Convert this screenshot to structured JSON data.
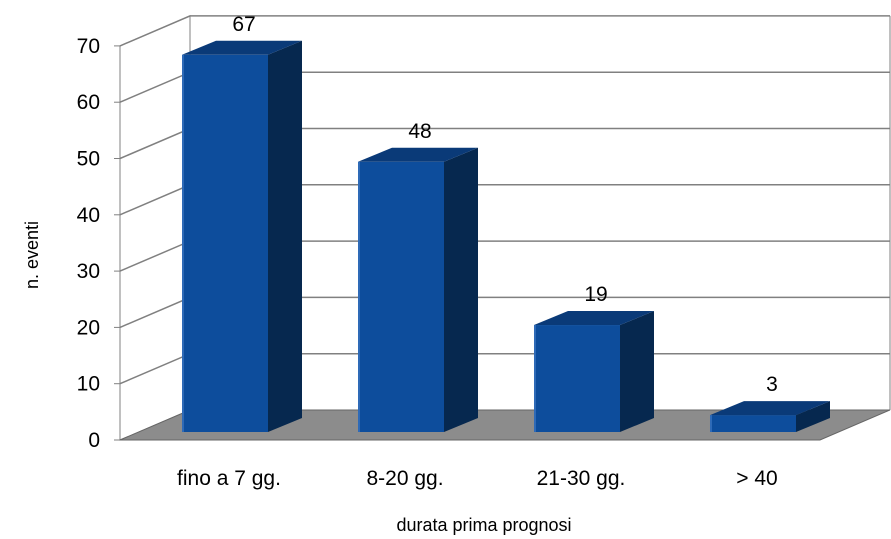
{
  "chart_data": {
    "type": "bar",
    "title": "",
    "xlabel": "durata prima prognosi",
    "ylabel": "n. eventi",
    "categories": [
      "fino a 7 gg.",
      "8-20 gg.",
      "21-30 gg.",
      "> 40"
    ],
    "values": [
      67,
      48,
      19,
      3
    ],
    "data_labels": [
      "67",
      "48",
      "19",
      "3"
    ],
    "ylim": [
      0,
      70
    ],
    "yticks": [
      "0",
      "10",
      "20",
      "30",
      "40",
      "50",
      "60",
      "70"
    ],
    "grid": true,
    "legend": "none",
    "style": "3d-column",
    "colors": {
      "bar_front": "#0d4d9c",
      "bar_side": "#06284f",
      "bar_top": "#0a3a78",
      "floor": "#8c8c8c",
      "grid": "#808080"
    }
  }
}
